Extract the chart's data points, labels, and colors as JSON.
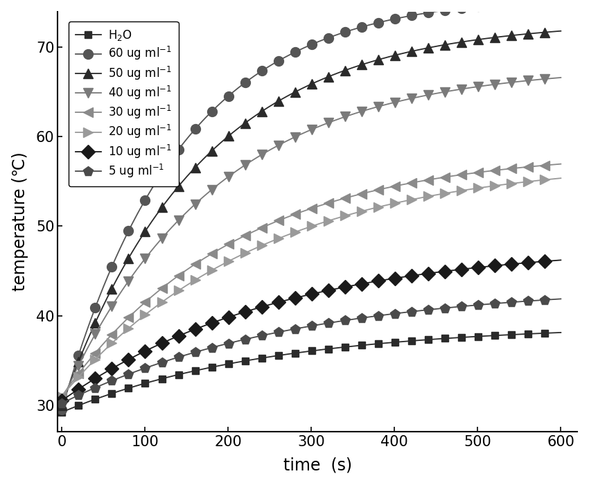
{
  "title": "",
  "xlabel": "time （s）",
  "ylabel": "temperature （℃）",
  "xlim": [
    -5,
    620
  ],
  "ylim": [
    27,
    74
  ],
  "xticks": [
    0,
    100,
    200,
    300,
    400,
    500,
    600
  ],
  "yticks": [
    30,
    40,
    50,
    60,
    70
  ],
  "series": [
    {
      "label": "H$_2$O",
      "color": "#2a2a2a",
      "marker": "s",
      "markersize": 7,
      "final_temp": 39.0,
      "start_temp": 29.2,
      "rise_rate": 0.004
    },
    {
      "label": "60 ug ml$^{-1}$",
      "color": "#555555",
      "marker": "o",
      "markersize": 10,
      "final_temp": 76.0,
      "start_temp": 29.5,
      "rise_rate": 0.007
    },
    {
      "label": "50 ug ml$^{-1}$",
      "color": "#2a2a2a",
      "marker": "^",
      "markersize": 10,
      "final_temp": 73.0,
      "start_temp": 30.0,
      "rise_rate": 0.006
    },
    {
      "label": "40 ug ml$^{-1}$",
      "color": "#7a7a7a",
      "marker": "v",
      "markersize": 10,
      "final_temp": 68.0,
      "start_temp": 30.5,
      "rise_rate": 0.0055
    },
    {
      "label": "30 ug ml$^{-1}$",
      "color": "#8a8a8a",
      "marker": "<",
      "markersize": 10,
      "final_temp": 58.5,
      "start_temp": 31.0,
      "rise_rate": 0.0048
    },
    {
      "label": "20 ug ml$^{-1}$",
      "color": "#9a9a9a",
      "marker": ">",
      "markersize": 10,
      "final_temp": 57.5,
      "start_temp": 31.0,
      "rise_rate": 0.0042
    },
    {
      "label": "10 ug ml$^{-1}$",
      "color": "#1a1a1a",
      "marker": "D",
      "markersize": 10,
      "final_temp": 48.0,
      "start_temp": 30.5,
      "rise_rate": 0.0038
    },
    {
      "label": "5 ug ml$^{-1}$",
      "color": "#4a4a4a",
      "marker": "p",
      "markersize": 10,
      "final_temp": 43.5,
      "start_temp": 30.2,
      "rise_rate": 0.0035
    }
  ],
  "background_color": "#ffffff",
  "linewidth": 1.3,
  "n_points": 600,
  "marker_step": 20
}
